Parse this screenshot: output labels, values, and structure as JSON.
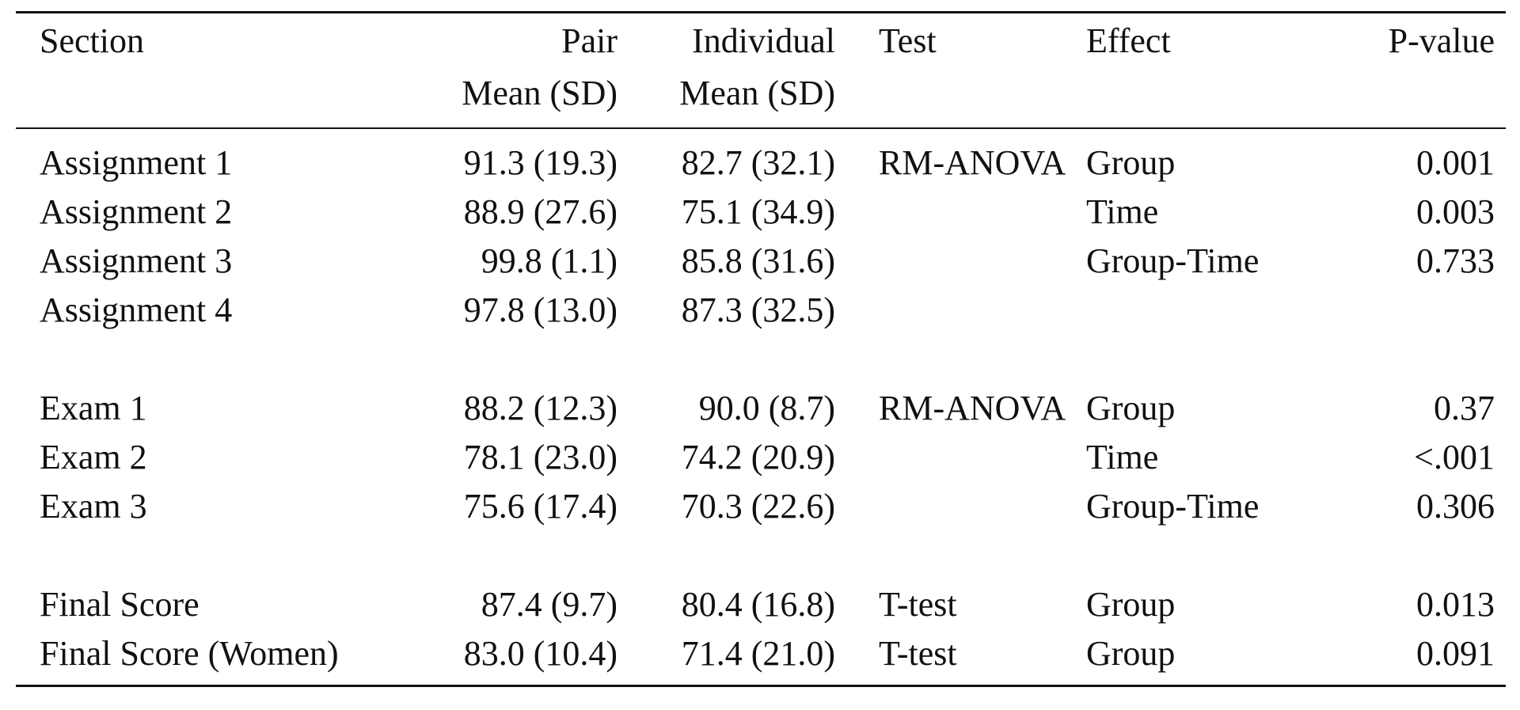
{
  "table": {
    "header": {
      "section": "Section",
      "pair_line1": "Pair",
      "pair_line2": "Mean (SD)",
      "individual_line1": "Individual",
      "individual_line2": "Mean (SD)",
      "test": "Test",
      "effect": "Effect",
      "pvalue": "P-value"
    },
    "rows": [
      {
        "section": "Assignment 1",
        "pair": "91.3 (19.3)",
        "individual": "82.7 (32.1)",
        "test": "RM-ANOVA",
        "effect": "Group",
        "pvalue": "0.001"
      },
      {
        "section": "Assignment 2",
        "pair": "88.9 (27.6)",
        "individual": "75.1 (34.9)",
        "test": "",
        "effect": "Time",
        "pvalue": "0.003"
      },
      {
        "section": "Assignment 3",
        "pair": "99.8 (1.1)",
        "individual": "85.8 (31.6)",
        "test": "",
        "effect": "Group-Time",
        "pvalue": "0.733"
      },
      {
        "section": "Assignment 4",
        "pair": "97.8 (13.0)",
        "individual": "87.3 (32.5)",
        "test": "",
        "effect": "",
        "pvalue": ""
      },
      {
        "section": "Exam 1",
        "pair": "88.2 (12.3)",
        "individual": "90.0 (8.7)",
        "test": "RM-ANOVA",
        "effect": "Group",
        "pvalue": "0.37"
      },
      {
        "section": "Exam 2",
        "pair": "78.1 (23.0)",
        "individual": "74.2 (20.9)",
        "test": "",
        "effect": "Time",
        "pvalue": "<.001"
      },
      {
        "section": "Exam 3",
        "pair": "75.6 (17.4)",
        "individual": "70.3 (22.6)",
        "test": "",
        "effect": "Group-Time",
        "pvalue": "0.306"
      },
      {
        "section": "Final Score",
        "pair": "87.4 (9.7)",
        "individual": "80.4 (16.8)",
        "test": "T-test",
        "effect": "Group",
        "pvalue": "0.013"
      },
      {
        "section": "Final Score (Women)",
        "pair": "83.0 (10.4)",
        "individual": "71.4 (21.0)",
        "test": "T-test",
        "effect": "Group",
        "pvalue": "0.091"
      }
    ]
  }
}
